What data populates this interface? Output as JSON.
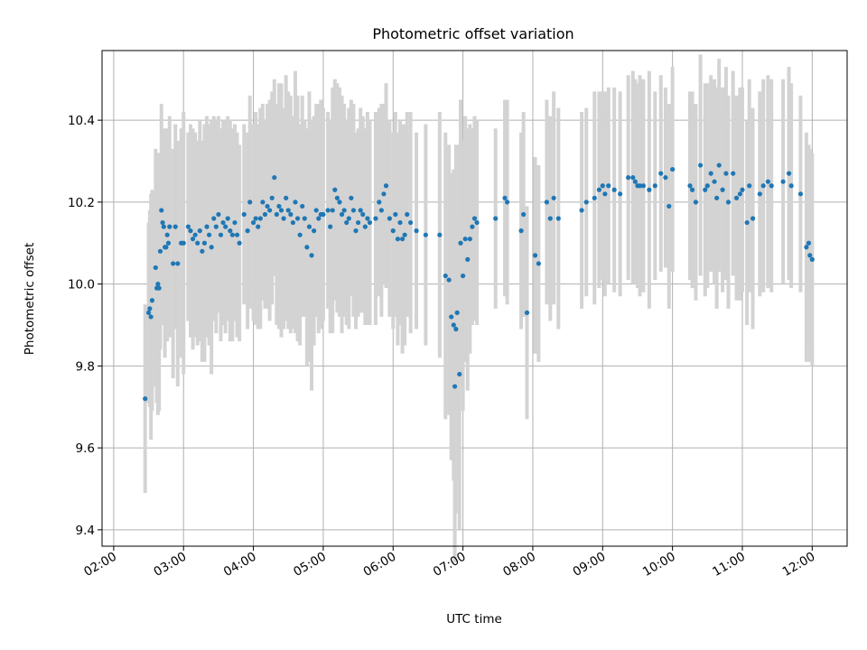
{
  "chart_data": {
    "type": "scatter",
    "title": "Photometric offset variation",
    "xlabel": "UTC time",
    "ylabel": "Photometric offset",
    "xlim": [
      "01:50",
      "12:30"
    ],
    "ylim": [
      9.36,
      10.57
    ],
    "grid": true,
    "x_ticks": [
      "02:00",
      "03:00",
      "04:00",
      "05:00",
      "06:00",
      "07:00",
      "08:00",
      "09:00",
      "10:00",
      "11:00",
      "12:00"
    ],
    "y_ticks": [
      "9.4",
      "9.6",
      "9.8",
      "10.0",
      "10.2",
      "10.4"
    ],
    "colors": {
      "point": "#1f77b4",
      "errorbar": "#d3d3d3"
    },
    "points": [
      [
        "02:27",
        9.72,
        0.23
      ],
      [
        "02:30",
        9.93,
        0.22
      ],
      [
        "02:31",
        9.94,
        0.24
      ],
      [
        "02:32",
        9.92,
        0.3
      ],
      [
        "02:33",
        9.96,
        0.27
      ],
      [
        "02:36",
        10.04,
        0.29
      ],
      [
        "02:37",
        9.99,
        0.28
      ],
      [
        "02:38",
        10.0,
        0.32
      ],
      [
        "02:39",
        9.99,
        0.3
      ],
      [
        "02:40",
        10.08,
        0.24
      ],
      [
        "02:41",
        10.18,
        0.26
      ],
      [
        "02:42",
        10.15,
        0.22
      ],
      [
        "02:43",
        10.14,
        0.24
      ],
      [
        "02:44",
        10.09,
        0.27
      ],
      [
        "02:45",
        10.09,
        0.23
      ],
      [
        "02:46",
        10.12,
        0.26
      ],
      [
        "02:47",
        10.1,
        0.22
      ],
      [
        "02:48",
        10.14,
        0.27
      ],
      [
        "02:51",
        10.05,
        0.28
      ],
      [
        "02:53",
        10.14,
        0.25
      ],
      [
        "02:55",
        10.05,
        0.3
      ],
      [
        "02:58",
        10.1,
        0.28
      ],
      [
        "03:00",
        10.1,
        0.32
      ],
      [
        "03:04",
        10.14,
        0.23
      ],
      [
        "03:06",
        10.13,
        0.26
      ],
      [
        "03:08",
        10.11,
        0.27
      ],
      [
        "03:10",
        10.12,
        0.25
      ],
      [
        "03:12",
        10.1,
        0.25
      ],
      [
        "03:14",
        10.13,
        0.27
      ],
      [
        "03:16",
        10.08,
        0.27
      ],
      [
        "03:18",
        10.1,
        0.29
      ],
      [
        "03:20",
        10.14,
        0.27
      ],
      [
        "03:22",
        10.12,
        0.27
      ],
      [
        "03:24",
        10.09,
        0.31
      ],
      [
        "03:26",
        10.16,
        0.25
      ],
      [
        "03:28",
        10.14,
        0.26
      ],
      [
        "03:30",
        10.17,
        0.24
      ],
      [
        "03:32",
        10.12,
        0.26
      ],
      [
        "03:34",
        10.15,
        0.25
      ],
      [
        "03:36",
        10.14,
        0.26
      ],
      [
        "03:38",
        10.16,
        0.25
      ],
      [
        "03:40",
        10.13,
        0.27
      ],
      [
        "03:42",
        10.12,
        0.26
      ],
      [
        "03:44",
        10.15,
        0.24
      ],
      [
        "03:46",
        10.12,
        0.25
      ],
      [
        "03:48",
        10.1,
        0.24
      ],
      [
        "03:52",
        10.17,
        0.22
      ],
      [
        "03:55",
        10.13,
        0.24
      ],
      [
        "03:57",
        10.2,
        0.26
      ],
      [
        "04:00",
        10.15,
        0.24
      ],
      [
        "04:02",
        10.16,
        0.26
      ],
      [
        "04:04",
        10.14,
        0.25
      ],
      [
        "04:06",
        10.16,
        0.27
      ],
      [
        "04:08",
        10.2,
        0.24
      ],
      [
        "04:10",
        10.17,
        0.23
      ],
      [
        "04:12",
        10.19,
        0.25
      ],
      [
        "04:14",
        10.18,
        0.27
      ],
      [
        "04:16",
        10.21,
        0.26
      ],
      [
        "04:18",
        10.26,
        0.24
      ],
      [
        "04:20",
        10.17,
        0.27
      ],
      [
        "04:22",
        10.19,
        0.3
      ],
      [
        "04:24",
        10.18,
        0.31
      ],
      [
        "04:26",
        10.16,
        0.27
      ],
      [
        "04:28",
        10.21,
        0.3
      ],
      [
        "04:30",
        10.18,
        0.29
      ],
      [
        "04:32",
        10.17,
        0.29
      ],
      [
        "04:34",
        10.15,
        0.26
      ],
      [
        "04:36",
        10.2,
        0.32
      ],
      [
        "04:38",
        10.16,
        0.3
      ],
      [
        "04:40",
        10.12,
        0.27
      ],
      [
        "04:42",
        10.19,
        0.27
      ],
      [
        "04:44",
        10.16,
        0.24
      ],
      [
        "04:46",
        10.09,
        0.29
      ],
      [
        "04:48",
        10.14,
        0.33
      ],
      [
        "04:50",
        10.07,
        0.33
      ],
      [
        "04:52",
        10.13,
        0.28
      ],
      [
        "04:54",
        10.18,
        0.26
      ],
      [
        "04:56",
        10.16,
        0.28
      ],
      [
        "04:58",
        10.17,
        0.28
      ],
      [
        "05:00",
        10.17,
        0.26
      ],
      [
        "05:04",
        10.18,
        0.24
      ],
      [
        "05:06",
        10.14,
        0.26
      ],
      [
        "05:08",
        10.18,
        0.3
      ],
      [
        "05:10",
        10.23,
        0.27
      ],
      [
        "05:12",
        10.21,
        0.28
      ],
      [
        "05:14",
        10.2,
        0.28
      ],
      [
        "05:16",
        10.17,
        0.29
      ],
      [
        "05:18",
        10.18,
        0.26
      ],
      [
        "05:20",
        10.15,
        0.25
      ],
      [
        "05:22",
        10.16,
        0.27
      ],
      [
        "05:24",
        10.21,
        0.24
      ],
      [
        "05:26",
        10.18,
        0.26
      ],
      [
        "05:28",
        10.13,
        0.24
      ],
      [
        "05:30",
        10.15,
        0.23
      ],
      [
        "05:32",
        10.18,
        0.25
      ],
      [
        "05:34",
        10.17,
        0.24
      ],
      [
        "05:36",
        10.14,
        0.24
      ],
      [
        "05:38",
        10.16,
        0.26
      ],
      [
        "05:40",
        10.15,
        0.25
      ],
      [
        "05:45",
        10.16,
        0.26
      ],
      [
        "05:48",
        10.2,
        0.23
      ],
      [
        "05:50",
        10.18,
        0.26
      ],
      [
        "05:52",
        10.22,
        0.22
      ],
      [
        "05:54",
        10.24,
        0.25
      ],
      [
        "05:57",
        10.16,
        0.24
      ],
      [
        "06:00",
        10.13,
        0.24
      ],
      [
        "06:02",
        10.17,
        0.25
      ],
      [
        "06:04",
        10.11,
        0.26
      ],
      [
        "06:06",
        10.15,
        0.25
      ],
      [
        "06:08",
        10.11,
        0.28
      ],
      [
        "06:10",
        10.12,
        0.27
      ],
      [
        "06:12",
        10.17,
        0.25
      ],
      [
        "06:15",
        10.15,
        0.27
      ],
      [
        "06:20",
        10.13,
        0.24
      ],
      [
        "06:28",
        10.12,
        0.27
      ],
      [
        "06:40",
        10.12,
        0.3
      ],
      [
        "06:45",
        10.02,
        0.35
      ],
      [
        "06:48",
        10.01,
        0.33
      ],
      [
        "06:50",
        9.92,
        0.35
      ],
      [
        "06:52",
        9.9,
        0.38
      ],
      [
        "06:53",
        9.75,
        0.43
      ],
      [
        "06:54",
        9.89,
        0.45
      ],
      [
        "06:55",
        9.93,
        0.41
      ],
      [
        "06:57",
        9.78,
        0.38
      ],
      [
        "06:58",
        10.1,
        0.35
      ],
      [
        "07:00",
        10.02,
        0.33
      ],
      [
        "07:02",
        10.11,
        0.3
      ],
      [
        "07:04",
        10.06,
        0.32
      ],
      [
        "07:06",
        10.11,
        0.28
      ],
      [
        "07:08",
        10.14,
        0.24
      ],
      [
        "07:10",
        10.16,
        0.25
      ],
      [
        "07:12",
        10.15,
        0.25
      ],
      [
        "07:28",
        10.16,
        0.22
      ],
      [
        "07:36",
        10.21,
        0.24
      ],
      [
        "07:38",
        10.2,
        0.25
      ],
      [
        "07:50",
        10.13,
        0.24
      ],
      [
        "07:52",
        10.17,
        0.25
      ],
      [
        "07:55",
        9.93,
        0.26
      ],
      [
        "08:02",
        10.07,
        0.24
      ],
      [
        "08:05",
        10.05,
        0.24
      ],
      [
        "08:12",
        10.2,
        0.25
      ],
      [
        "08:15",
        10.16,
        0.25
      ],
      [
        "08:18",
        10.21,
        0.26
      ],
      [
        "08:22",
        10.16,
        0.27
      ],
      [
        "08:42",
        10.18,
        0.24
      ],
      [
        "08:46",
        10.2,
        0.23
      ],
      [
        "08:53",
        10.21,
        0.26
      ],
      [
        "08:57",
        10.23,
        0.24
      ],
      [
        "09:00",
        10.24,
        0.23
      ],
      [
        "09:02",
        10.22,
        0.25
      ],
      [
        "09:05",
        10.24,
        0.24
      ],
      [
        "09:10",
        10.23,
        0.25
      ],
      [
        "09:15",
        10.22,
        0.25
      ],
      [
        "09:22",
        10.26,
        0.25
      ],
      [
        "09:26",
        10.26,
        0.26
      ],
      [
        "09:28",
        10.25,
        0.25
      ],
      [
        "09:30",
        10.24,
        0.25
      ],
      [
        "09:32",
        10.24,
        0.27
      ],
      [
        "09:35",
        10.24,
        0.26
      ],
      [
        "09:40",
        10.23,
        0.29
      ],
      [
        "09:45",
        10.24,
        0.23
      ],
      [
        "09:50",
        10.27,
        0.24
      ],
      [
        "09:54",
        10.26,
        0.22
      ],
      [
        "09:57",
        10.19,
        0.25
      ],
      [
        "10:00",
        10.28,
        0.25
      ],
      [
        "10:15",
        10.24,
        0.23
      ],
      [
        "10:17",
        10.23,
        0.24
      ],
      [
        "10:20",
        10.2,
        0.24
      ],
      [
        "10:24",
        10.29,
        0.27
      ],
      [
        "10:28",
        10.23,
        0.26
      ],
      [
        "10:30",
        10.24,
        0.25
      ],
      [
        "10:33",
        10.27,
        0.24
      ],
      [
        "10:36",
        10.25,
        0.25
      ],
      [
        "10:38",
        10.21,
        0.27
      ],
      [
        "10:40",
        10.29,
        0.26
      ],
      [
        "10:43",
        10.23,
        0.25
      ],
      [
        "10:46",
        10.27,
        0.26
      ],
      [
        "10:48",
        10.2,
        0.26
      ],
      [
        "10:52",
        10.27,
        0.25
      ],
      [
        "10:55",
        10.21,
        0.25
      ],
      [
        "10:58",
        10.22,
        0.26
      ],
      [
        "11:00",
        10.23,
        0.25
      ],
      [
        "11:04",
        10.15,
        0.25
      ],
      [
        "11:06",
        10.24,
        0.26
      ],
      [
        "11:09",
        10.16,
        0.27
      ],
      [
        "11:15",
        10.22,
        0.25
      ],
      [
        "11:18",
        10.24,
        0.26
      ],
      [
        "11:22",
        10.25,
        0.26
      ],
      [
        "11:25",
        10.24,
        0.26
      ],
      [
        "11:35",
        10.25,
        0.25
      ],
      [
        "11:40",
        10.27,
        0.26
      ],
      [
        "11:42",
        10.24,
        0.25
      ],
      [
        "11:50",
        10.22,
        0.24
      ],
      [
        "11:55",
        10.09,
        0.28
      ],
      [
        "11:57",
        10.1,
        0.24
      ],
      [
        "11:58",
        10.07,
        0.26
      ],
      [
        "12:00",
        10.06,
        0.26
      ]
    ]
  }
}
